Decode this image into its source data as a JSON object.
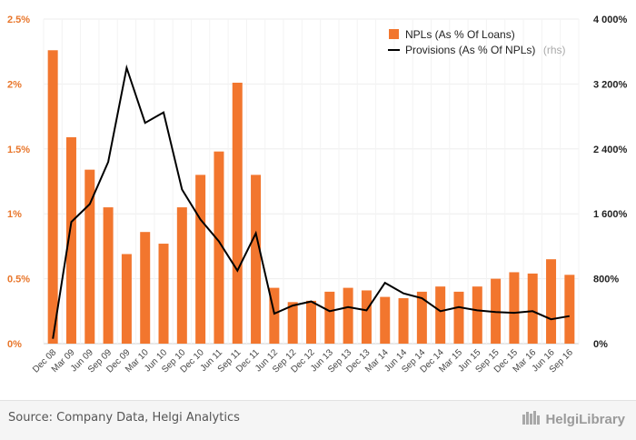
{
  "chart_data": {
    "type": "bar+line",
    "categories": [
      "Dec 08",
      "Mar 09",
      "Jun 09",
      "Sep 09",
      "Dec 09",
      "Mar 10",
      "Jun 10",
      "Sep 10",
      "Dec 10",
      "Jun 11",
      "Sep 11",
      "Dec 11",
      "Jun 12",
      "Sep 12",
      "Dec 12",
      "Jun 13",
      "Sep 13",
      "Dec 13",
      "Mar 14",
      "Jun 14",
      "Sep 14",
      "Dec 14",
      "Mar 15",
      "Jun 15",
      "Sep 15",
      "Dec 15",
      "Mar 16",
      "Jun 16",
      "Sep 16"
    ],
    "series": [
      {
        "name": "NPLs (As % Of Loans)",
        "type": "bar",
        "axis": "left",
        "color": "#f2762e",
        "values": [
          2.26,
          1.59,
          1.34,
          1.05,
          0.69,
          0.86,
          0.77,
          1.05,
          1.3,
          1.48,
          2.01,
          1.3,
          0.43,
          0.32,
          0.33,
          0.4,
          0.43,
          0.41,
          0.36,
          0.35,
          0.4,
          0.44,
          0.4,
          0.44,
          0.5,
          0.55,
          0.54,
          0.65,
          0.53
        ]
      },
      {
        "name": "Provisions (As % Of NPLs)",
        "name_suffix": "(rhs)",
        "type": "line",
        "axis": "right",
        "color": "#000000",
        "values": [
          60,
          1500,
          1720,
          2240,
          3400,
          2720,
          2850,
          1900,
          1530,
          1260,
          900,
          1360,
          370,
          470,
          520,
          400,
          450,
          410,
          750,
          620,
          560,
          400,
          450,
          410,
          390,
          380,
          400,
          300,
          340
        ]
      }
    ],
    "y_left": {
      "min": 0,
      "max": 2.5,
      "ticks": [
        "0%",
        "0.5%",
        "1%",
        "1.5%",
        "2%",
        "2.5%"
      ],
      "color": "#e8762b"
    },
    "y_right": {
      "min": 0,
      "max": 4000,
      "ticks": [
        "0%",
        "800%",
        "1 600%",
        "2 400%",
        "3 200%",
        "4 000%"
      ]
    },
    "grid": true,
    "legend_position": "top-right"
  },
  "footer": {
    "source": "Source: Company Data, Helgi Analytics",
    "brand": "HelgiLibrary"
  }
}
